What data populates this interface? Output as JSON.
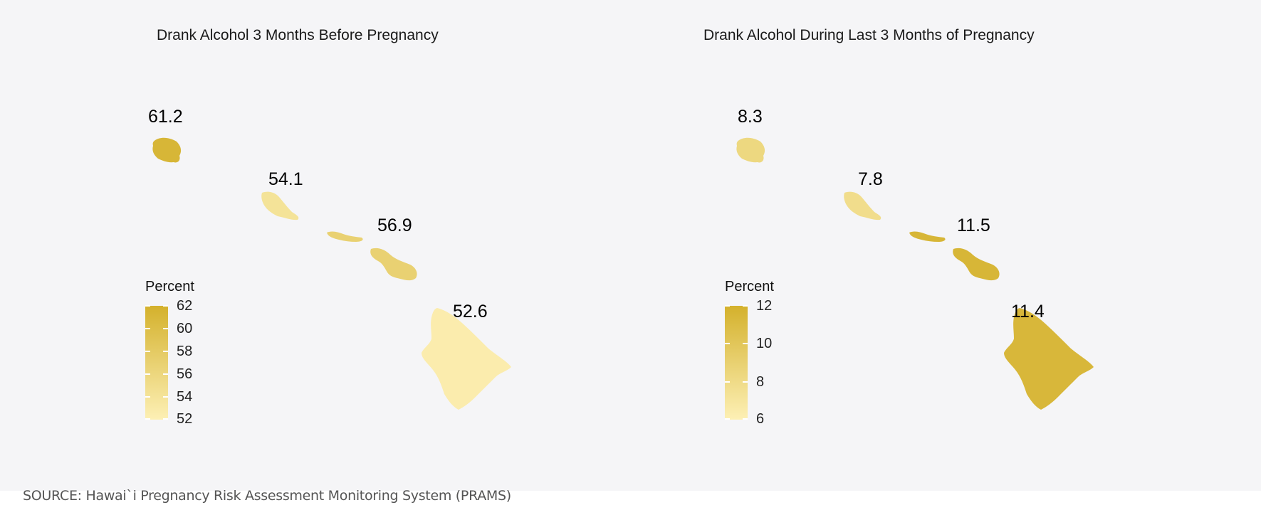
{
  "maps": [
    {
      "title": "Drank Alcohol 3 Months Before Pregnancy",
      "legend": {
        "title": "Percent",
        "min": 52,
        "max": 62,
        "ticks": [
          "62",
          "60",
          "58",
          "56",
          "54",
          "52"
        ]
      },
      "islands": [
        {
          "name": "Kauai",
          "value": 61.2,
          "label": "61.2"
        },
        {
          "name": "Oahu",
          "value": 54.1,
          "label": "54.1"
        },
        {
          "name": "Molokai",
          "value": 56.9,
          "label": ""
        },
        {
          "name": "Maui",
          "value": 56.9,
          "label": "56.9"
        },
        {
          "name": "Hawaii",
          "value": 52.6,
          "label": "52.6"
        }
      ]
    },
    {
      "title": "Drank Alcohol During Last 3 Months of Pregnancy",
      "legend": {
        "title": "Percent",
        "min": 6,
        "max": 12,
        "ticks": [
          "12",
          "10",
          "8",
          "6"
        ]
      },
      "islands": [
        {
          "name": "Kauai",
          "value": 8.3,
          "label": "8.3"
        },
        {
          "name": "Oahu",
          "value": 7.8,
          "label": "7.8"
        },
        {
          "name": "Molokai",
          "value": 11.5,
          "label": ""
        },
        {
          "name": "Maui",
          "value": 11.5,
          "label": "11.5"
        },
        {
          "name": "Hawaii",
          "value": 11.4,
          "label": "11.4"
        }
      ]
    }
  ],
  "colors": {
    "low": "#fdf0b5",
    "high": "#d4b12c",
    "background": "#f5f5f7"
  },
  "source": "SOURCE: Hawai`i Pregnancy Risk Assessment Monitoring System (PRAMS)"
}
